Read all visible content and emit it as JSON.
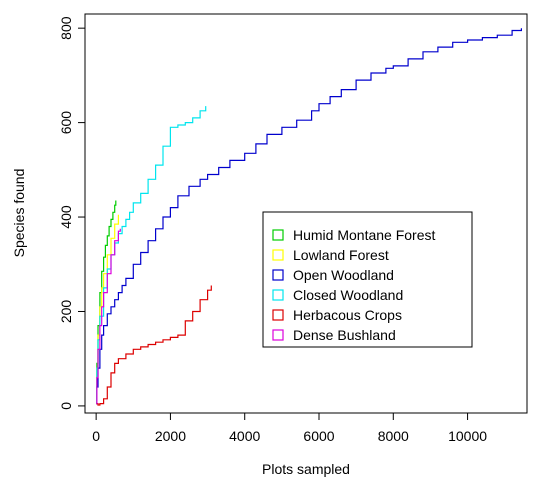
{
  "chart_data": {
    "type": "line",
    "title": "",
    "xlabel": "Plots sampled",
    "ylabel": "Species found",
    "xlim": [
      -300,
      11600
    ],
    "ylim": [
      -15,
      830
    ],
    "xticks": [
      0,
      2000,
      4000,
      6000,
      8000,
      10000
    ],
    "yticks": [
      0,
      200,
      400,
      600,
      800
    ],
    "grid": false,
    "legend_position": "center-right",
    "series": [
      {
        "name": "Humid Montane Forest",
        "color": "#00cd00",
        "x": [
          1,
          20,
          50,
          100,
          150,
          200,
          250,
          300,
          350,
          400,
          450,
          500,
          530
        ],
        "y": [
          5,
          90,
          170,
          240,
          285,
          315,
          340,
          360,
          380,
          395,
          410,
          425,
          435
        ]
      },
      {
        "name": "Lowland Forest",
        "color": "#ffff00",
        "x": [
          1,
          20,
          50,
          100,
          150,
          200,
          300,
          400,
          500,
          600
        ],
        "y": [
          5,
          80,
          150,
          210,
          250,
          280,
          320,
          355,
          385,
          405
        ]
      },
      {
        "name": "Open Woodland",
        "color": "#0000cd",
        "x": [
          1,
          20,
          50,
          100,
          150,
          200,
          300,
          400,
          500,
          600,
          700,
          800,
          1000,
          1200,
          1400,
          1600,
          1800,
          2000,
          2200,
          2500,
          2800,
          3000,
          3300,
          3600,
          4000,
          4300,
          4600,
          5000,
          5400,
          5800,
          6000,
          6300,
          6600,
          7000,
          7400,
          7800,
          8000,
          8400,
          8800,
          9200,
          9600,
          10000,
          10400,
          10800,
          11200,
          11450
        ],
        "y": [
          5,
          40,
          80,
          120,
          150,
          170,
          195,
          210,
          225,
          240,
          255,
          270,
          300,
          325,
          350,
          375,
          400,
          420,
          445,
          465,
          480,
          490,
          505,
          520,
          535,
          555,
          575,
          590,
          605,
          625,
          640,
          655,
          670,
          690,
          705,
          715,
          720,
          735,
          750,
          760,
          770,
          775,
          780,
          785,
          795,
          800
        ]
      },
      {
        "name": "Closed Woodland",
        "color": "#00e5ee",
        "x": [
          1,
          20,
          50,
          100,
          200,
          300,
          400,
          500,
          600,
          700,
          800,
          900,
          1000,
          1200,
          1400,
          1600,
          1800,
          2000,
          2200,
          2400,
          2600,
          2800,
          2950
        ],
        "y": [
          5,
          80,
          140,
          190,
          250,
          290,
          320,
          345,
          365,
          380,
          395,
          410,
          430,
          450,
          480,
          510,
          550,
          590,
          595,
          600,
          610,
          625,
          635
        ]
      },
      {
        "name": "Herbacous Crops",
        "color": "#dd0000",
        "x": [
          1,
          50,
          100,
          200,
          300,
          400,
          500,
          600,
          800,
          1000,
          1200,
          1400,
          1600,
          1800,
          2000,
          2200,
          2400,
          2600,
          2800,
          3000,
          3100
        ],
        "y": [
          5,
          2,
          5,
          15,
          40,
          70,
          90,
          100,
          110,
          120,
          125,
          130,
          135,
          140,
          145,
          150,
          180,
          200,
          225,
          245,
          255
        ]
      },
      {
        "name": "Dense Bushland",
        "color": "#dd00dd",
        "x": [
          1,
          20,
          50,
          100,
          150,
          200,
          300,
          400,
          500,
          600,
          650
        ],
        "y": [
          5,
          60,
          120,
          170,
          210,
          240,
          280,
          320,
          350,
          370,
          375
        ]
      }
    ]
  }
}
